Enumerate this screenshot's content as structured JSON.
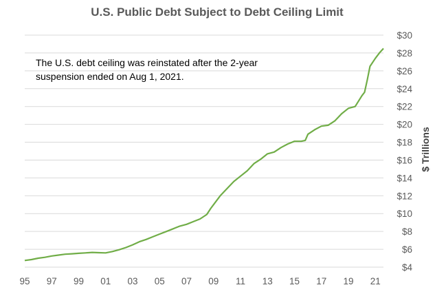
{
  "chart_data": {
    "type": "line",
    "title": "U.S. Public Debt Subject to Debt Ceiling Limit",
    "ylabel": "$ Trillions",
    "xlabel": "",
    "annotation": [
      "The U.S. debt ceiling was reinstated after the 2-year",
      "suspension ended on Aug 1, 2021."
    ],
    "x_tick_labels": [
      "95",
      "97",
      "99",
      "01",
      "03",
      "05",
      "07",
      "09",
      "11",
      "13",
      "15",
      "17",
      "19",
      "21"
    ],
    "x_tick_years": [
      1995,
      1997,
      1999,
      2001,
      2003,
      2005,
      2007,
      2009,
      2011,
      2013,
      2015,
      2017,
      2019,
      2021
    ],
    "y_tick_labels": [
      "$4",
      "$6",
      "$8",
      "$10",
      "$12",
      "$14",
      "$16",
      "$18",
      "$20",
      "$22",
      "$24",
      "$26",
      "$28",
      "$30"
    ],
    "xlim": [
      1995,
      2021.6
    ],
    "ylim": [
      4,
      30
    ],
    "y_axis_position": "right",
    "grid": "horizontal",
    "line_color": "#70AD47",
    "series": [
      {
        "x": [
          1995.0,
          1995.5,
          1996.0,
          1996.5,
          1997.0,
          1997.5,
          1998.0,
          1998.5,
          1999.0,
          1999.5,
          2000.0,
          2000.5,
          2001.0,
          2001.5,
          2002.0,
          2002.5,
          2003.0,
          2003.5,
          2004.0,
          2004.5,
          2005.0,
          2005.5,
          2006.0,
          2006.5,
          2007.0,
          2007.5,
          2008.0,
          2008.5,
          2008.8,
          2009.0,
          2009.5,
          2010.0,
          2010.5,
          2011.0,
          2011.5,
          2012.0,
          2012.5,
          2013.0,
          2013.5,
          2014.0,
          2014.5,
          2015.0,
          2015.5,
          2015.8,
          2016.0,
          2016.5,
          2017.0,
          2017.5,
          2018.0,
          2018.5,
          2019.0,
          2019.5,
          2020.0,
          2020.2,
          2020.4,
          2020.6,
          2021.0,
          2021.3,
          2021.6
        ],
        "values": [
          4.75,
          4.85,
          5.0,
          5.1,
          5.25,
          5.35,
          5.45,
          5.5,
          5.55,
          5.6,
          5.65,
          5.62,
          5.6,
          5.75,
          5.95,
          6.2,
          6.5,
          6.85,
          7.1,
          7.4,
          7.7,
          8.0,
          8.3,
          8.6,
          8.8,
          9.1,
          9.4,
          9.9,
          10.6,
          11.0,
          12.0,
          12.8,
          13.6,
          14.2,
          14.8,
          15.6,
          16.1,
          16.7,
          16.9,
          17.4,
          17.8,
          18.1,
          18.1,
          18.2,
          18.9,
          19.4,
          19.8,
          19.9,
          20.4,
          21.2,
          21.8,
          22.0,
          23.2,
          23.6,
          25.0,
          26.5,
          27.4,
          28.0,
          28.5
        ]
      }
    ]
  }
}
